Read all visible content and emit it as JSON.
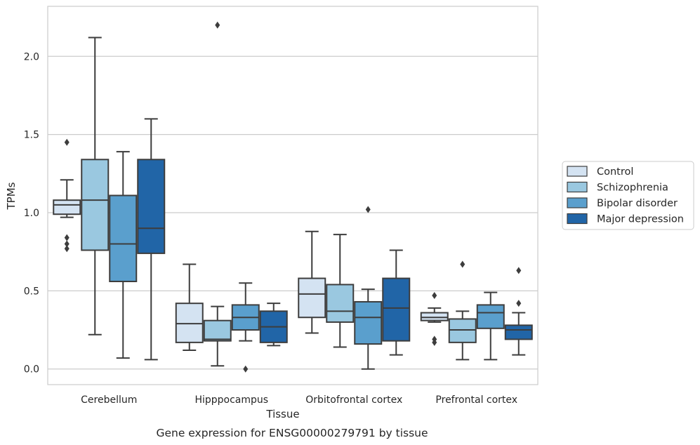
{
  "caption": "Gene expression for ENSG00000279791 by tissue",
  "chart_data": {
    "type": "box",
    "xlabel": "Tissue",
    "ylabel": "TPMs",
    "ylim": [
      -0.1,
      2.32
    ],
    "yticks": [
      "0.0",
      "0.5",
      "1.0",
      "1.5",
      "2.0"
    ],
    "grid": true,
    "legend_position": "right",
    "categories": [
      "Cerebellum",
      "Hipppocampus",
      "Orbitofrontal cortex",
      "Prefrontal cortex"
    ],
    "series": [
      {
        "name": "Control",
        "color": "#d4e3f2",
        "boxes": [
          {
            "whislo": 0.97,
            "q1": 0.99,
            "med": 1.05,
            "q3": 1.08,
            "whishi": 1.21,
            "fliers": [
              1.45,
              0.84,
              0.8,
              0.77
            ]
          },
          {
            "whislo": 0.12,
            "q1": 0.17,
            "med": 0.29,
            "q3": 0.42,
            "whishi": 0.67,
            "fliers": []
          },
          {
            "whislo": 0.23,
            "q1": 0.33,
            "med": 0.48,
            "q3": 0.58,
            "whishi": 0.88,
            "fliers": []
          },
          {
            "whislo": 0.3,
            "q1": 0.31,
            "med": 0.33,
            "q3": 0.36,
            "whishi": 0.39,
            "fliers": [
              0.47,
              0.19,
              0.17
            ]
          }
        ]
      },
      {
        "name": "Schizophrenia",
        "color": "#9ac8e0",
        "boxes": [
          {
            "whislo": 0.22,
            "q1": 0.76,
            "med": 1.08,
            "q3": 1.34,
            "whishi": 2.12,
            "fliers": []
          },
          {
            "whislo": 0.02,
            "q1": 0.18,
            "med": 0.19,
            "q3": 0.31,
            "whishi": 0.4,
            "fliers": [
              2.2
            ]
          },
          {
            "whislo": 0.14,
            "q1": 0.3,
            "med": 0.37,
            "q3": 0.54,
            "whishi": 0.86,
            "fliers": []
          },
          {
            "whislo": 0.06,
            "q1": 0.17,
            "med": 0.25,
            "q3": 0.32,
            "whishi": 0.37,
            "fliers": [
              0.67
            ]
          }
        ]
      },
      {
        "name": "Bipolar disorder",
        "color": "#5a9fcd",
        "boxes": [
          {
            "whislo": 0.07,
            "q1": 0.56,
            "med": 0.8,
            "q3": 1.11,
            "whishi": 1.39,
            "fliers": []
          },
          {
            "whislo": 0.18,
            "q1": 0.25,
            "med": 0.33,
            "q3": 0.41,
            "whishi": 0.55,
            "fliers": [
              0.0
            ]
          },
          {
            "whislo": 0.0,
            "q1": 0.16,
            "med": 0.33,
            "q3": 0.43,
            "whishi": 0.51,
            "fliers": [
              1.02
            ]
          },
          {
            "whislo": 0.06,
            "q1": 0.26,
            "med": 0.36,
            "q3": 0.41,
            "whishi": 0.49,
            "fliers": []
          }
        ]
      },
      {
        "name": "Major depression",
        "color": "#2165a7",
        "boxes": [
          {
            "whislo": 0.06,
            "q1": 0.74,
            "med": 0.9,
            "q3": 1.34,
            "whishi": 1.6,
            "fliers": []
          },
          {
            "whislo": 0.15,
            "q1": 0.17,
            "med": 0.27,
            "q3": 0.37,
            "whishi": 0.42,
            "fliers": []
          },
          {
            "whislo": 0.09,
            "q1": 0.18,
            "med": 0.39,
            "q3": 0.58,
            "whishi": 0.76,
            "fliers": []
          },
          {
            "whislo": 0.09,
            "q1": 0.19,
            "med": 0.25,
            "q3": 0.28,
            "whishi": 0.36,
            "fliers": [
              0.63,
              0.42
            ]
          }
        ]
      }
    ]
  }
}
